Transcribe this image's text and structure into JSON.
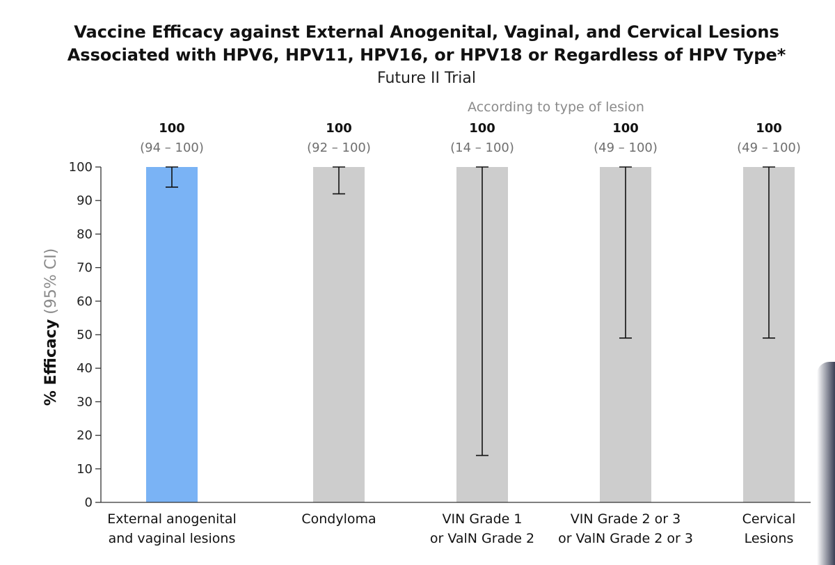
{
  "chart_data": {
    "type": "bar",
    "title_lines": [
      "Vaccine Efficacy against External Anogenital, Vaginal, and Cervical Lesions",
      "Associated with HPV6, HPV11, HPV16, or HPV18 or Regardless of HPV Type*"
    ],
    "subtitle": "Future II Trial",
    "section_label": "According to type of lesion",
    "ylabel_main": "% Efficacy",
    "ylabel_sub": "(95% CI)",
    "ylim": [
      0,
      100
    ],
    "yticks": [
      "0",
      "10",
      "20",
      "30",
      "40",
      "50",
      "60",
      "70",
      "80",
      "90",
      "100"
    ],
    "grid": false,
    "categories": [
      [
        "External anogenital",
        "and vaginal lesions"
      ],
      [
        "Condyloma"
      ],
      [
        "VIN Grade 1",
        "or ValN Grade 2"
      ],
      [
        "VIN Grade 2 or 3",
        "or ValN Grade 2 or 3"
      ],
      [
        "Cervical",
        "Lesions"
      ]
    ],
    "values": [
      100,
      100,
      100,
      100,
      100
    ],
    "value_labels": [
      "100",
      "100",
      "100",
      "100",
      "100"
    ],
    "ci_lower": [
      94,
      92,
      14,
      49,
      49
    ],
    "ci_upper": [
      100,
      100,
      100,
      100,
      100
    ],
    "ci_labels": [
      "(94 – 100)",
      "(92 – 100)",
      "(14 – 100)",
      "(49 – 100)",
      "(49 – 100)"
    ],
    "bar_colors": [
      "#7ab3f5",
      "#cdcdcd",
      "#cdcdcd",
      "#cdcdcd",
      "#cdcdcd"
    ]
  }
}
